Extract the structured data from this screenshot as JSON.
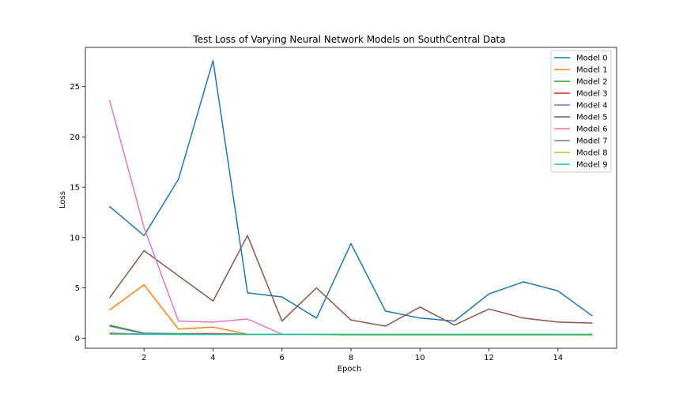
{
  "chart_data": {
    "type": "line",
    "title": "Test Loss of Varying Neural Network Models on SouthCentral Data",
    "xlabel": "Epoch",
    "ylabel": "Loss",
    "x": [
      1,
      2,
      3,
      4,
      5,
      6,
      7,
      8,
      9,
      10,
      11,
      12,
      13,
      14,
      15
    ],
    "xlim": [
      0.3,
      15.7
    ],
    "ylim": [
      -1.0,
      28.9
    ],
    "xticks": [
      2,
      4,
      6,
      8,
      10,
      12,
      14
    ],
    "yticks": [
      0,
      5,
      10,
      15,
      20,
      25
    ],
    "grid": false,
    "legend_position": "top-right",
    "series": [
      {
        "name": "Model 0",
        "color": "#1f77b4",
        "values": [
          13.1,
          10.2,
          15.8,
          27.6,
          4.5,
          4.1,
          2.0,
          9.4,
          2.7,
          2.0,
          1.7,
          4.4,
          5.6,
          4.7,
          2.2
        ]
      },
      {
        "name": "Model 1",
        "color": "#ff7f0e",
        "values": [
          2.8,
          5.3,
          0.9,
          1.1,
          0.4,
          0.35,
          0.35,
          0.35,
          0.35,
          0.35,
          0.35,
          0.35,
          0.35,
          0.35,
          0.35
        ]
      },
      {
        "name": "Model 2",
        "color": "#2ca02c",
        "values": [
          1.3,
          0.5,
          0.45,
          0.45,
          0.4,
          0.4,
          0.4,
          0.4,
          0.4,
          0.4,
          0.4,
          0.4,
          0.4,
          0.4,
          0.4
        ]
      },
      {
        "name": "Model 3",
        "color": "#d62728",
        "values": [
          0.5,
          0.4,
          0.4,
          0.45,
          0.4,
          0.4,
          0.4,
          0.4,
          0.4,
          0.4,
          0.35,
          0.35,
          0.35,
          0.35,
          0.35
        ]
      },
      {
        "name": "Model 4",
        "color": "#9467bd",
        "values": [
          0.45,
          0.4,
          0.4,
          0.4,
          0.4,
          0.4,
          0.4,
          0.4,
          0.4,
          0.4,
          0.4,
          0.4,
          0.4,
          0.4,
          0.4
        ]
      },
      {
        "name": "Model 5",
        "color": "#8c564b",
        "values": [
          4.0,
          8.7,
          6.2,
          3.7,
          10.2,
          1.7,
          5.0,
          1.8,
          1.2,
          3.1,
          1.3,
          2.9,
          2.0,
          1.6,
          1.5
        ]
      },
      {
        "name": "Model 6",
        "color": "#e377c2",
        "values": [
          23.7,
          11.0,
          1.7,
          1.6,
          1.9,
          0.4,
          0.35,
          0.35,
          0.35,
          0.35,
          0.35,
          0.35,
          0.35,
          0.35,
          0.35
        ]
      },
      {
        "name": "Model 7",
        "color": "#7f7f7f",
        "values": [
          1.2,
          0.45,
          0.4,
          0.4,
          0.4,
          0.4,
          0.4,
          0.4,
          0.4,
          0.4,
          0.4,
          0.4,
          0.4,
          0.4,
          0.4
        ]
      },
      {
        "name": "Model 8",
        "color": "#bcbd22",
        "values": [
          0.4,
          0.4,
          0.35,
          0.35,
          0.35,
          0.35,
          0.35,
          0.3,
          0.3,
          0.3,
          0.3,
          0.3,
          0.3,
          0.3,
          0.3
        ]
      },
      {
        "name": "Model 9",
        "color": "#17becf",
        "values": [
          0.45,
          0.4,
          0.4,
          0.4,
          0.4,
          0.4,
          0.4,
          0.4,
          0.4,
          0.4,
          0.4,
          0.4,
          0.4,
          0.4,
          0.4
        ]
      }
    ]
  }
}
